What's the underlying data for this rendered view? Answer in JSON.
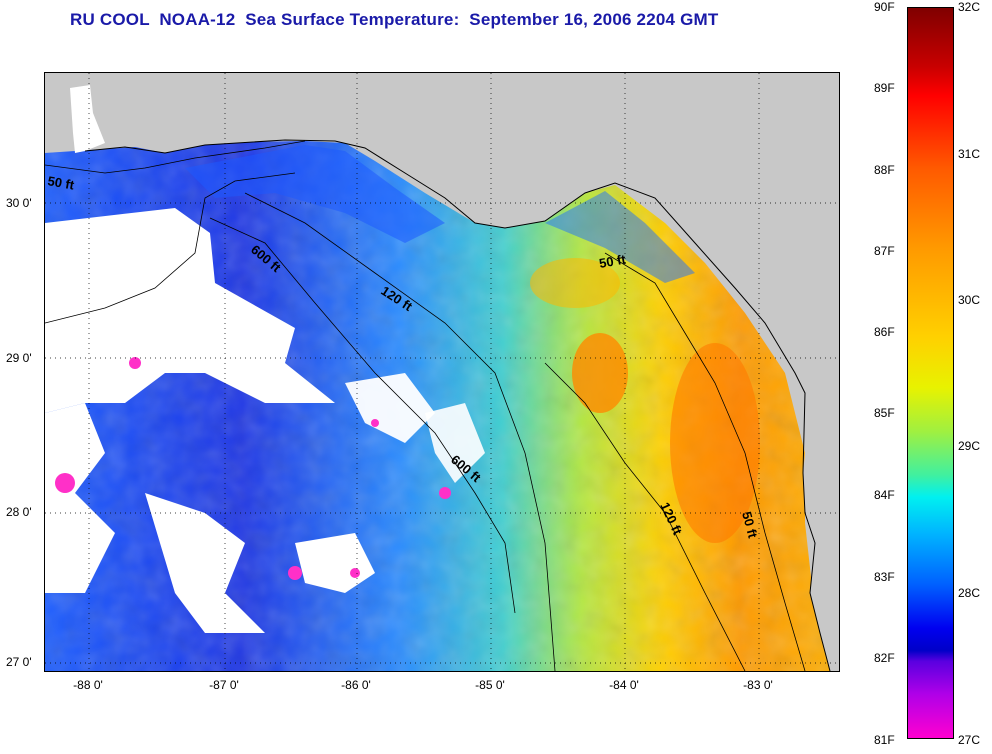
{
  "title": "RU COOL  NOAA-12  Sea Surface Temperature:  September 16, 2006 2204 GMT",
  "axes": {
    "x_ticks": [
      "-88 0'",
      "-87 0'",
      "-86 0'",
      "-85 0'",
      "-84 0'",
      "-83 0'"
    ],
    "y_ticks": [
      "30 0'",
      "29 0'",
      "28 0'",
      "27 0'"
    ]
  },
  "depth_labels": [
    "50 ft",
    "600 ft",
    "120 ft",
    "50 ft",
    "600 ft",
    "120 ft",
    "50 ft"
  ],
  "colorbar": {
    "fahrenheit": [
      "90F",
      "89F",
      "88F",
      "87F",
      "86F",
      "85F",
      "84F",
      "83F",
      "82F",
      "81F"
    ],
    "celsius": [
      "32C",
      "31C",
      "30C",
      "29C",
      "28C",
      "27C"
    ]
  },
  "colors": {
    "title": "#1a1aa8",
    "land": "#c8c8c8",
    "cloud": "#ffffff"
  }
}
